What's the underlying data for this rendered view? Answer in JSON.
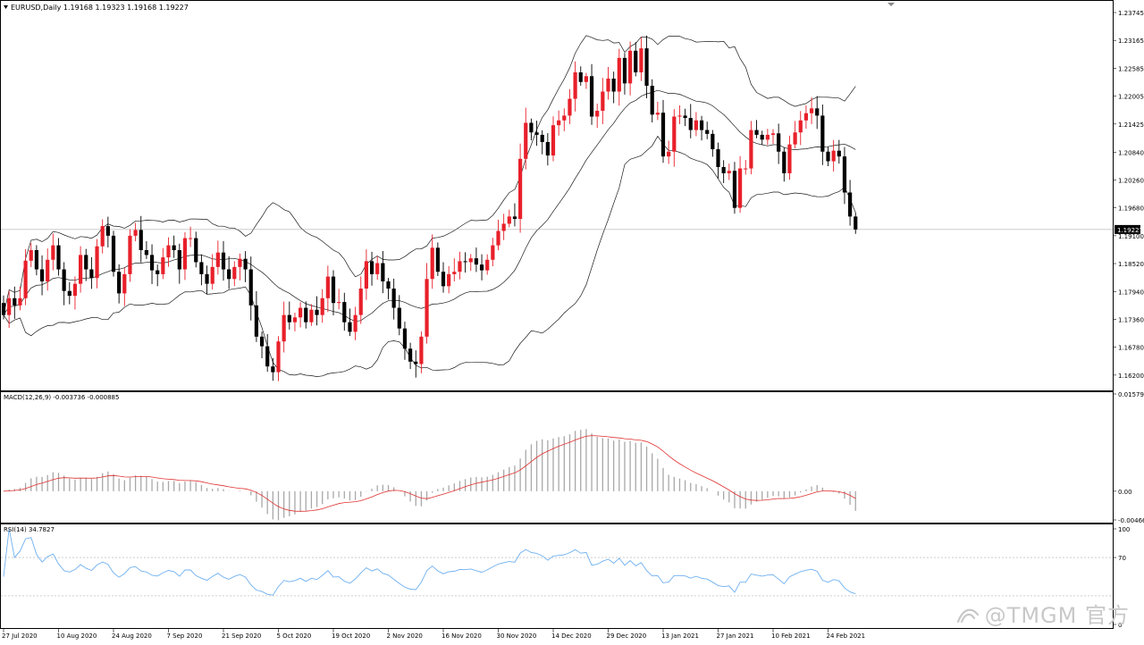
{
  "header": {
    "symbol_info": "EURUSD,Daily  1.19168 1.19323 1.19168 1.19227"
  },
  "price_axis": {
    "ticks": [
      "1.23745",
      "1.23165",
      "1.22585",
      "1.22005",
      "1.21425",
      "1.20840",
      "1.20260",
      "1.19680",
      "1.19100",
      "1.18520",
      "1.17940",
      "1.17360",
      "1.16780",
      "1.16200"
    ],
    "current_label": "1.19227"
  },
  "macd_panel": {
    "label": "MACD(12,26,9) -0.003736 -0.000885",
    "ticks": [
      "0.015794",
      "0.00",
      "-0.004666"
    ]
  },
  "rsi_panel": {
    "label": "RSI(14) 34.7827",
    "ticks": [
      "100",
      "70",
      "0"
    ]
  },
  "time_axis": {
    "labels": [
      "27 Jul 2020",
      "10 Aug 2020",
      "24 Aug 2020",
      "7 Sep 2020",
      "21 Sep 2020",
      "5 Oct 2020",
      "19 Oct 2020",
      "2 Nov 2020",
      "16 Nov 2020",
      "30 Nov 2020",
      "14 Dec 2020",
      "29 Dec 2020",
      "13 Jan 2021",
      "27 Jan 2021",
      "10 Feb 2021",
      "24 Feb 2021"
    ]
  },
  "watermark": {
    "text": "@TMGM 官方"
  },
  "colors": {
    "bull": "#e8202a",
    "bear": "#000000",
    "band": "#1a1a1a",
    "signal": "#e03030",
    "histogram": "#a8a8a8",
    "rsi": "#6fb0f0"
  },
  "chart_data": [
    {
      "type": "candlestick",
      "title": "EURUSD,Daily",
      "ylim": [
        1.159,
        1.2395
      ],
      "indicator": "Bollinger Bands",
      "close": [
        1.1745,
        1.178,
        1.1765,
        1.178,
        1.1858,
        1.188,
        1.184,
        1.1815,
        1.186,
        1.189,
        1.184,
        1.1795,
        1.1785,
        1.181,
        1.187,
        1.184,
        1.1822,
        1.1888,
        1.193,
        1.191,
        1.1835,
        1.179,
        1.183,
        1.191,
        1.1922,
        1.188,
        1.187,
        1.1838,
        1.183,
        1.1865,
        1.189,
        1.188,
        1.184,
        1.1905,
        1.1905,
        1.1855,
        1.183,
        1.181,
        1.1845,
        1.1875,
        1.184,
        1.182,
        1.1845,
        1.1862,
        1.184,
        1.1765,
        1.17,
        1.168,
        1.1638,
        1.1626,
        1.169,
        1.1745,
        1.173,
        1.174,
        1.176,
        1.173,
        1.1756,
        1.1745,
        1.178,
        1.1825,
        1.177,
        1.1772,
        1.173,
        1.171,
        1.1745,
        1.18,
        1.1857,
        1.183,
        1.1853,
        1.1815,
        1.18,
        1.176,
        1.1717,
        1.1675,
        1.1648,
        1.1643,
        1.17,
        1.182,
        1.1885,
        1.1835,
        1.1805,
        1.183,
        1.1835,
        1.1857,
        1.1855,
        1.1863,
        1.185,
        1.1838,
        1.186,
        1.189,
        1.192,
        1.1935,
        1.195,
        1.1945,
        1.207,
        1.2145,
        1.2125,
        1.212,
        1.2105,
        1.2077,
        1.214,
        1.215,
        1.216,
        1.2195,
        1.225,
        1.223,
        1.2242,
        1.2158,
        1.217,
        1.221,
        1.2237,
        1.221,
        1.228,
        1.2227,
        1.2295,
        1.225,
        1.23,
        1.2222,
        1.2162,
        1.2166,
        1.2075,
        1.2085,
        1.2158,
        1.216,
        1.2155,
        1.213,
        1.215,
        1.213,
        1.2122,
        1.209,
        1.2053,
        1.204,
        1.2045,
        1.1968,
        1.205,
        1.205,
        1.213,
        1.212,
        1.211,
        1.212,
        1.2123,
        1.2085,
        1.204,
        1.21,
        1.2125,
        1.215,
        1.2165,
        1.2175,
        1.216,
        1.2085,
        1.2065,
        1.2087,
        1.2075,
        1.2,
        1.195,
        1.1923
      ]
    },
    {
      "type": "bar",
      "title": "MACD(12,26,9)",
      "ylim": [
        -0.004666,
        0.015794
      ],
      "series": [
        {
          "name": "MACD",
          "kind": "histogram"
        },
        {
          "name": "Signal",
          "kind": "line"
        }
      ],
      "latest": {
        "macd": -0.003736,
        "signal": -0.000885
      }
    },
    {
      "type": "line",
      "title": "RSI(14)",
      "ylim": [
        0,
        100
      ],
      "levels": [
        70,
        30
      ],
      "latest": 34.7827
    }
  ]
}
